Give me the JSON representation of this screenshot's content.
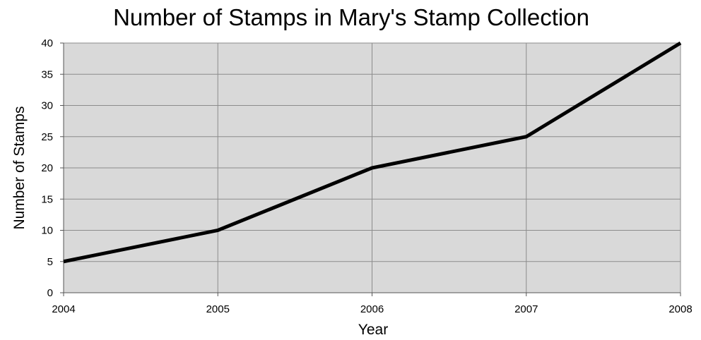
{
  "chart_data": {
    "type": "line",
    "title": "Number of Stamps in Mary's Stamp Collection",
    "xlabel": "Year",
    "ylabel": "Number of Stamps",
    "x": [
      2004,
      2005,
      2006,
      2007,
      2008
    ],
    "x_ticks": [
      "2004",
      "2005",
      "2006",
      "2007",
      "2008"
    ],
    "series": [
      {
        "values": [
          5,
          10,
          20,
          25,
          40
        ]
      }
    ],
    "ylim": [
      0,
      40
    ],
    "y_ticks": [
      0,
      5,
      10,
      15,
      20,
      25,
      30,
      35,
      40
    ],
    "grid": true,
    "legend": "none",
    "colors": {
      "plot_background": "#d9d9d9",
      "line": "#000000",
      "grid": "#8c8c8c"
    }
  }
}
